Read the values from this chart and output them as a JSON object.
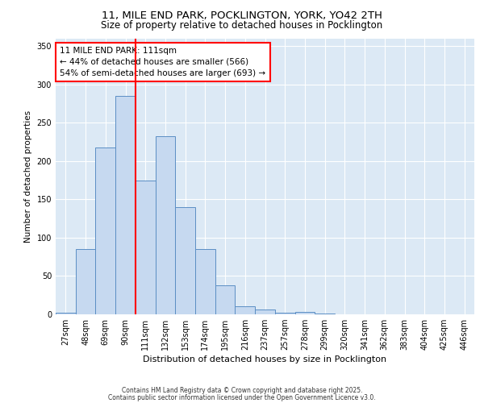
{
  "title1": "11, MILE END PARK, POCKLINGTON, YORK, YO42 2TH",
  "title2": "Size of property relative to detached houses in Pocklington",
  "xlabel": "Distribution of detached houses by size in Pocklington",
  "ylabel": "Number of detached properties",
  "categories": [
    "27sqm",
    "48sqm",
    "69sqm",
    "90sqm",
    "111sqm",
    "132sqm",
    "153sqm",
    "174sqm",
    "195sqm",
    "216sqm",
    "237sqm",
    "257sqm",
    "278sqm",
    "299sqm",
    "320sqm",
    "341sqm",
    "362sqm",
    "383sqm",
    "404sqm",
    "425sqm",
    "446sqm"
  ],
  "bar_heights": [
    2,
    85,
    218,
    285,
    175,
    232,
    140,
    85,
    38,
    10,
    6,
    2,
    3,
    1,
    0,
    0,
    0,
    0,
    0,
    0,
    0
  ],
  "bar_color": "#c6d9f0",
  "bar_edge_color": "#5b8ec4",
  "vline_color": "red",
  "annotation_text": "11 MILE END PARK: 111sqm\n← 44% of detached houses are smaller (566)\n54% of semi-detached houses are larger (693) →",
  "ylim": [
    0,
    360
  ],
  "yticks": [
    0,
    50,
    100,
    150,
    200,
    250,
    300,
    350
  ],
  "footer1": "Contains HM Land Registry data © Crown copyright and database right 2025.",
  "footer2": "Contains public sector information licensed under the Open Government Licence v3.0.",
  "plot_bg": "#dce9f5"
}
